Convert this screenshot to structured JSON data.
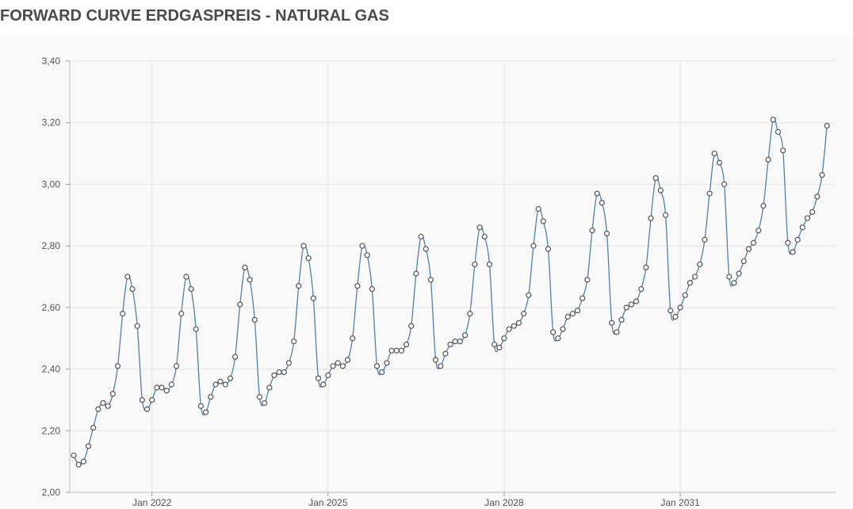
{
  "title": "FORWARD CURVE ERDGASPREIS - NATURAL GAS",
  "colors": {
    "line": "#4f81b0",
    "marker_stroke": "#555555",
    "marker_fill": "#ffffff",
    "grid": "#e3e3e3",
    "background": "#f9f9f9"
  },
  "chart_data": {
    "type": "line",
    "title": "",
    "xlabel": "",
    "ylabel": "",
    "x_start": "2020-09",
    "x_frequency": "monthly",
    "x_ticks": [
      {
        "date": "2022-01",
        "label": "Jan 2022"
      },
      {
        "date": "2025-01",
        "label": "Jan 2025"
      },
      {
        "date": "2028-01",
        "label": "Jan 2028"
      },
      {
        "date": "2031-01",
        "label": "Jan 2031"
      }
    ],
    "ylim": [
      2.0,
      3.4
    ],
    "y_ticks": [
      "2,00",
      "2,20",
      "2,40",
      "2,60",
      "2,80",
      "3,00",
      "3,20",
      "3,40"
    ],
    "grid": true,
    "legend": "none",
    "series": [
      {
        "values": [
          2.12,
          2.09,
          2.1,
          2.15,
          2.21,
          2.27,
          2.29,
          2.28,
          2.32,
          2.41,
          2.58,
          2.7,
          2.66,
          2.54,
          2.3,
          2.27,
          2.3,
          2.34,
          2.34,
          2.33,
          2.35,
          2.41,
          2.58,
          2.7,
          2.66,
          2.53,
          2.28,
          2.26,
          2.31,
          2.35,
          2.36,
          2.35,
          2.37,
          2.44,
          2.61,
          2.73,
          2.69,
          2.56,
          2.31,
          2.29,
          2.34,
          2.38,
          2.39,
          2.39,
          2.42,
          2.49,
          2.67,
          2.8,
          2.76,
          2.63,
          2.37,
          2.35,
          2.38,
          2.41,
          2.42,
          2.41,
          2.43,
          2.5,
          2.67,
          2.8,
          2.77,
          2.66,
          2.41,
          2.39,
          2.42,
          2.46,
          2.46,
          2.46,
          2.48,
          2.54,
          2.71,
          2.83,
          2.79,
          2.69,
          2.43,
          2.41,
          2.45,
          2.48,
          2.49,
          2.49,
          2.51,
          2.58,
          2.74,
          2.86,
          2.83,
          2.74,
          2.48,
          2.47,
          2.5,
          2.53,
          2.54,
          2.55,
          2.58,
          2.64,
          2.8,
          2.92,
          2.88,
          2.79,
          2.52,
          2.5,
          2.53,
          2.57,
          2.58,
          2.59,
          2.63,
          2.69,
          2.85,
          2.97,
          2.94,
          2.84,
          2.55,
          2.52,
          2.56,
          2.6,
          2.61,
          2.62,
          2.66,
          2.73,
          2.89,
          3.02,
          2.98,
          2.9,
          2.59,
          2.57,
          2.6,
          2.64,
          2.68,
          2.7,
          2.74,
          2.82,
          2.97,
          3.1,
          3.07,
          3.0,
          2.7,
          2.68,
          2.71,
          2.75,
          2.79,
          2.81,
          2.85,
          2.93,
          3.08,
          3.21,
          3.17,
          3.11,
          2.81,
          2.78,
          2.82,
          2.86,
          2.89,
          2.91,
          2.96,
          3.03,
          3.19
        ]
      }
    ]
  }
}
